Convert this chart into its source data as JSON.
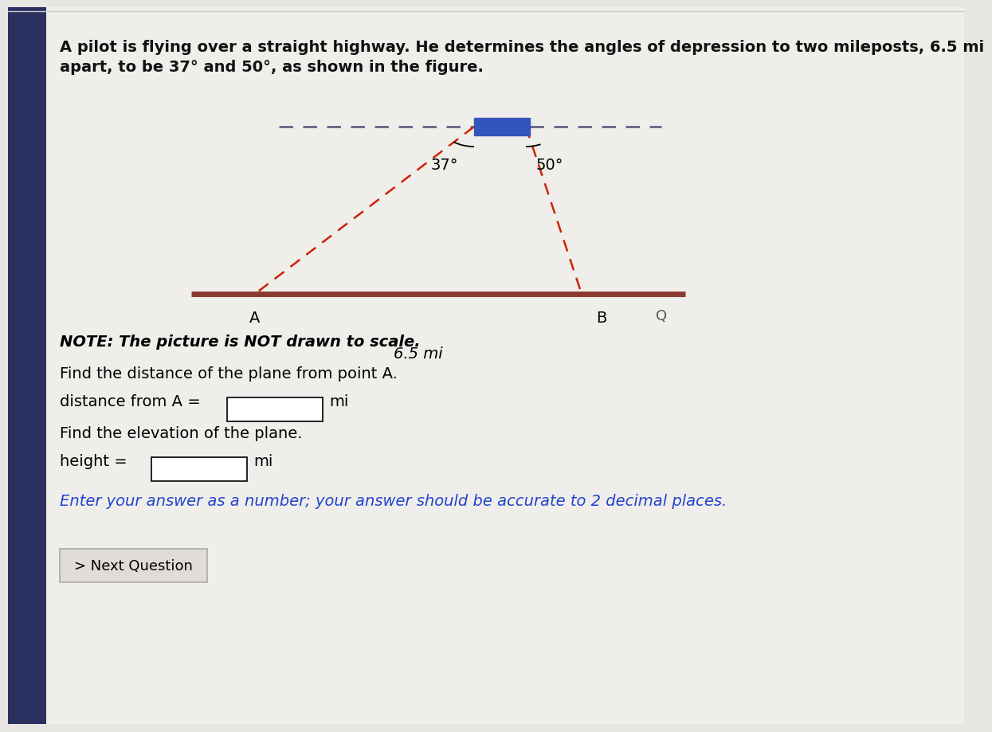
{
  "bg_color": "#e8e6e3",
  "title_text1": "A pilot is flying over a straight highway. He determines the angles of depression to two mileposts, 6.5 mi",
  "title_text2": "apart, to be 37° and 50°, as shown in the figure.",
  "note_text": "NOTE: The picture is NOT drawn to scale.",
  "question1": "Find the distance of the plane from point A.",
  "label_dist": "distance from A =",
  "label_dist_unit": "mi",
  "question2": "Find the elevation of the plane.",
  "label_height": "height =",
  "label_height_unit": "mi",
  "blue_note": "Enter your answer as a number; your answer should be accurate to 2 decimal places.",
  "button_text": "> Next Question",
  "angle1": "37°",
  "angle2": "50°",
  "dist_label": "6.5 mi",
  "point_A": "A",
  "point_B": "B",
  "line_color": "#CC2200",
  "road_color": "#8B3A30",
  "dash_line_color": "#555577",
  "blue_rect_color": "#3355BB",
  "left_panel_color": "#2a3060",
  "white": "#ffffff",
  "black": "#111111",
  "blue_text": "#2244CC"
}
